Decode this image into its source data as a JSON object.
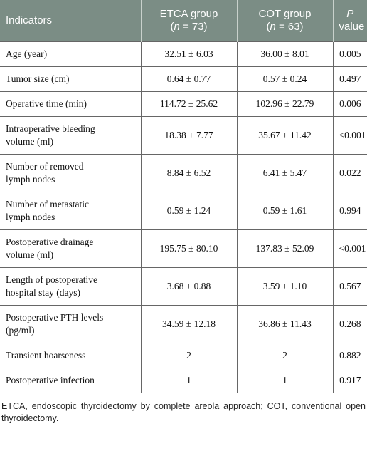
{
  "table": {
    "header": [
      [
        "Indicators"
      ],
      [
        "ETCA group",
        "(",
        "n",
        " = 73)"
      ],
      [
        "COT group",
        "(",
        "n",
        " = 63)"
      ],
      [
        "P",
        "value"
      ]
    ],
    "rows": [
      [
        [
          "Age (year)"
        ],
        "32.51 ± 6.03",
        "36.00 ± 8.01",
        "0.005"
      ],
      [
        [
          "Tumor size (cm)"
        ],
        "0.64 ± 0.77",
        "0.57 ± 0.24",
        "0.497"
      ],
      [
        [
          "Operative time (min)"
        ],
        "114.72 ± 25.62",
        "102.96 ± 22.79",
        "0.006"
      ],
      [
        [
          "Intraoperative bleeding",
          "volume (ml)"
        ],
        "18.38 ± 7.77",
        "35.67 ± 11.42",
        "<0.001"
      ],
      [
        [
          "Number of removed",
          "lymph nodes"
        ],
        "8.84 ± 6.52",
        "6.41 ± 5.47",
        "0.022"
      ],
      [
        [
          "Number of metastatic",
          "lymph nodes"
        ],
        "0.59 ± 1.24",
        "0.59 ± 1.61",
        "0.994"
      ],
      [
        [
          "Postoperative drainage",
          "volume (ml)"
        ],
        "195.75 ± 80.10",
        "137.83 ± 52.09",
        "<0.001"
      ],
      [
        [
          "Length of postoperative",
          "hospital stay (days)"
        ],
        "3.68 ± 0.88",
        "3.59 ± 1.10",
        "0.567"
      ],
      [
        [
          "Postoperative PTH levels",
          "(pg/ml)"
        ],
        "34.59 ± 12.18",
        "36.86 ± 11.43",
        "0.268"
      ],
      [
        [
          "Transient hoarseness"
        ],
        "2",
        "2",
        "0.882"
      ],
      [
        [
          "Postoperative infection"
        ],
        "1",
        "1",
        "0.917"
      ]
    ]
  },
  "footnote": "ETCA, endoscopic thyroidectomy by complete areola approach; COT, conventional open thyroidectomy."
}
